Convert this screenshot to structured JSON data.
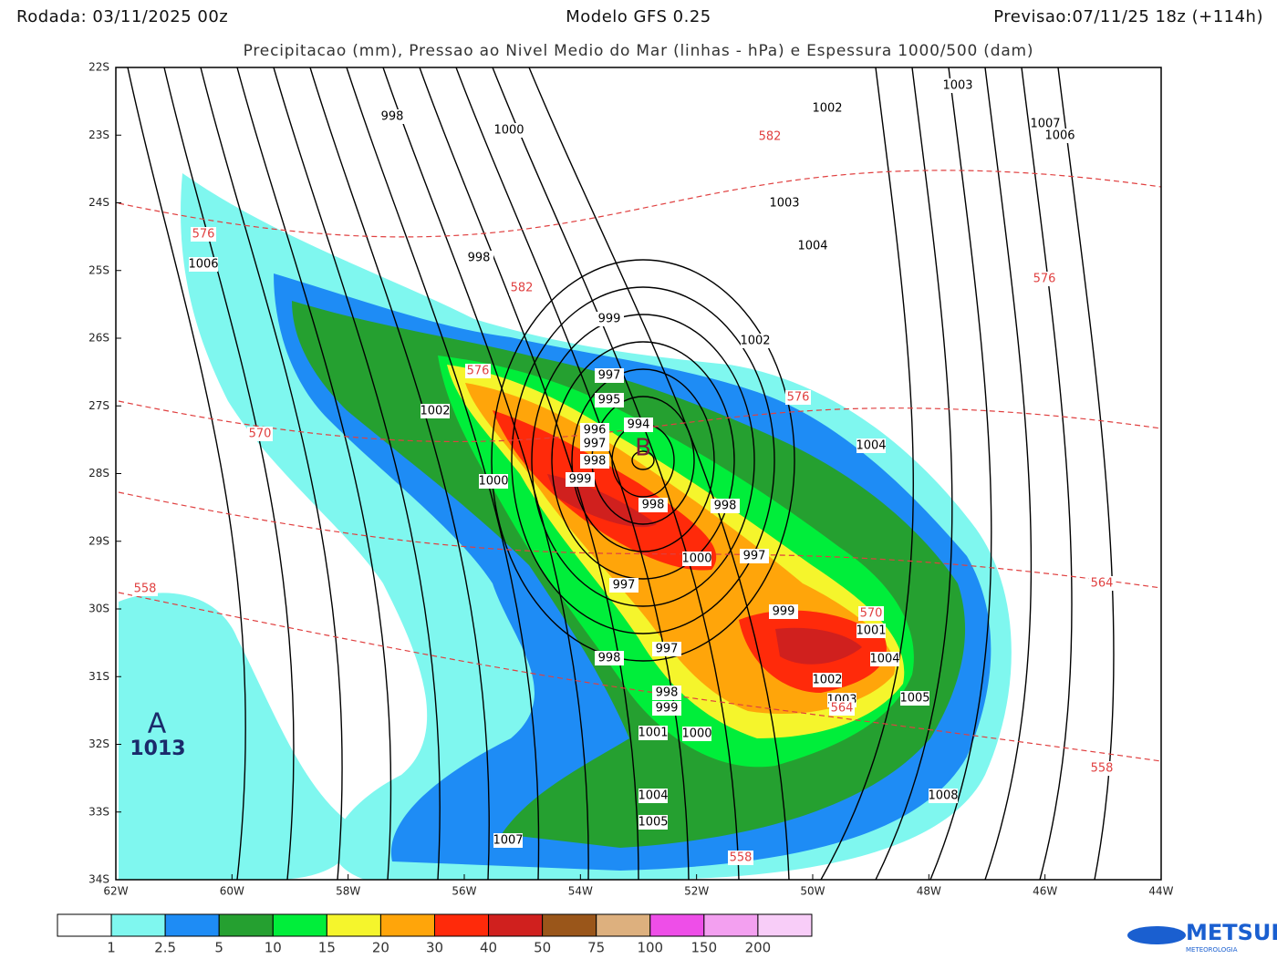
{
  "header": {
    "run": "Rodada: 03/11/2025 00z",
    "model": "Modelo GFS 0.25",
    "forecast": "Previsao:07/11/25 18z (+114h)",
    "subtitle": "Precipitacao (mm), Pressao ao Nivel Medio do Mar (linhas - hPa) e Espessura 1000/500 (dam)"
  },
  "axes": {
    "lat_labels": [
      "22S",
      "23S",
      "24S",
      "25S",
      "26S",
      "27S",
      "28S",
      "29S",
      "30S",
      "31S",
      "32S",
      "33S",
      "34S"
    ],
    "lon_labels": [
      "62W",
      "60W",
      "58W",
      "56W",
      "54W",
      "52W",
      "50W",
      "48W",
      "46W",
      "44W"
    ]
  },
  "isobar_labels": [
    "998",
    "1000",
    "1002",
    "1003",
    "1007",
    "1006",
    "1003",
    "1004",
    "1006",
    "998",
    "999",
    "1002",
    "997",
    "995",
    "1002",
    "994",
    "996",
    "997",
    "998",
    "999",
    "1000",
    "998",
    "998",
    "1000",
    "997",
    "997",
    "999",
    "1001",
    "1004",
    "998",
    "997",
    "1002",
    "998",
    "999",
    "1003",
    "1005",
    "1001",
    "1000",
    "1004",
    "1008",
    "1005",
    "1007",
    "1004"
  ],
  "thickness_labels": [
    "576",
    "582",
    "582",
    "576",
    "576",
    "576",
    "570",
    "558",
    "564",
    "570",
    "564",
    "558",
    "558"
  ],
  "low": {
    "symbol": "B"
  },
  "high": {
    "symbol": "A",
    "value": "1013"
  },
  "legend": {
    "colors": [
      "#ffffff",
      "#7ff7ef",
      "#1e8cf5",
      "#25a030",
      "#00ee3a",
      "#f5f52c",
      "#ffa50a",
      "#ff2a0a",
      "#d0201e",
      "#9a561a",
      "#ddb07e",
      "#ee4ee8",
      "#f3a0f0",
      "#f8cdf8"
    ],
    "labels": [
      "1",
      "2.5",
      "5",
      "10",
      "15",
      "20",
      "30",
      "40",
      "50",
      "75",
      "100",
      "150",
      "200"
    ]
  },
  "logo": {
    "name": "METSUL",
    "tagline": "METEOROLOGIA"
  }
}
